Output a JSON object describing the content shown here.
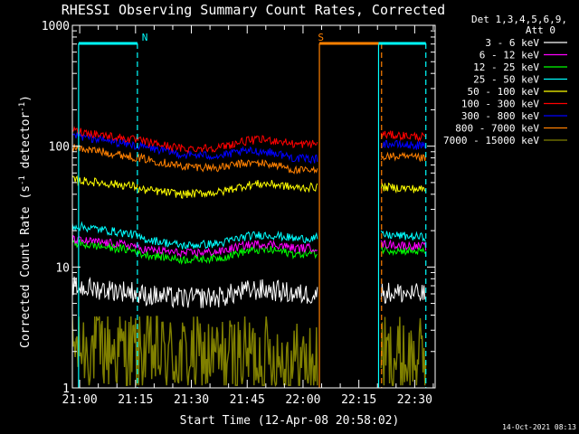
{
  "chart_data": {
    "type": "line",
    "title": "RHESSI Observing Summary Count Rates, Corrected",
    "xlabel": "Start Time (12-Apr-08 20:58:02)",
    "ylabel_parts": [
      "Corrected Count Rate (s",
      "-1",
      " detector",
      "-1",
      ")"
    ],
    "y_scale": "log",
    "ylim": [
      1,
      1000
    ],
    "xlim_minutes_after_2100": [
      -1.97,
      95.5
    ],
    "x_ticks": [
      {
        "label": "21:00",
        "t": 0
      },
      {
        "label": "21:15",
        "t": 15
      },
      {
        "label": "21:30",
        "t": 30
      },
      {
        "label": "21:45",
        "t": 45
      },
      {
        "label": "22:00",
        "t": 60
      },
      {
        "label": "22:15",
        "t": 75
      },
      {
        "label": "22:30",
        "t": 90
      }
    ],
    "y_tick_labels": [
      {
        "label": "1",
        "v": 1
      },
      {
        "label": "10",
        "v": 10
      },
      {
        "label": "100",
        "v": 100
      },
      {
        "label": "1000",
        "v": 1000
      }
    ],
    "legend_header": [
      "Det 1,3,4,5,6,9,",
      "Att 0"
    ],
    "timestamp": "14-Oct-2021 08:13",
    "flag_labels": [
      {
        "text": "N",
        "t": 17.5,
        "color": "#00ffff"
      },
      {
        "text": "S",
        "t": 64.8,
        "color": "#ff8000"
      }
    ],
    "segments_minutes": [
      [
        -1.97,
        15.6
      ],
      [
        15.6,
        64.0
      ],
      [
        81.0,
        93.0
      ]
    ],
    "series": [
      {
        "name": "3 - 6 keV",
        "color": "#ffffff",
        "values_start_mid_end": [
          6.5,
          5.5,
          6.0
        ],
        "seg3": 6.2
      },
      {
        "name": "6 - 12 keV",
        "color": "#ff00ff",
        "values_start_mid_end": [
          16.0,
          13.0,
          14.5
        ],
        "seg3": 15.5
      },
      {
        "name": "12 - 25 keV",
        "color": "#00ff00",
        "values_start_mid_end": [
          15.0,
          11.5,
          13.0
        ],
        "seg3": 14.0
      },
      {
        "name": "25 - 50 keV",
        "color": "#00ffff",
        "values_start_mid_end": [
          21.0,
          15.0,
          17.5
        ],
        "seg3": 18.5
      },
      {
        "name": "50 - 100 keV",
        "color": "#ffff00",
        "values_start_mid_end": [
          50.0,
          40.0,
          46.0
        ],
        "seg3": 46.0
      },
      {
        "name": "100 - 300 keV",
        "color": "#ff0000",
        "values_start_mid_end": [
          135.0,
          95.0,
          105.0
        ],
        "seg3": 125.0
      },
      {
        "name": "300 - 800 keV",
        "color": "#0000ff",
        "values_start_mid_end": [
          123.0,
          85.0,
          78.0
        ],
        "seg3": 105.0
      },
      {
        "name": "800 - 7000 keV",
        "color": "#ff8000",
        "values_start_mid_end": [
          98.0,
          68.0,
          62.0
        ],
        "seg3": 83.0
      },
      {
        "name": "7000 - 15000 keV",
        "color": "#808000",
        "values_start_mid_end": [
          2.2,
          1.8,
          1.6
        ],
        "seg3": 1.8
      }
    ],
    "markers": [
      {
        "t": -0.3,
        "color": "#00ffff",
        "style": "solid"
      },
      {
        "t": 15.5,
        "color": "#00ffff",
        "style": "dash"
      },
      {
        "t": 64.4,
        "color": "#ff8000",
        "style": "solid"
      },
      {
        "t": 80.3,
        "color": "#00ffff",
        "style": "solid"
      },
      {
        "t": 81.1,
        "color": "#ff8000",
        "style": "dash"
      },
      {
        "t": 93.0,
        "color": "#00ffff",
        "style": "dash"
      }
    ],
    "flag_bars": [
      {
        "t0": -0.3,
        "t1": 15.5,
        "color": "#00ffff"
      },
      {
        "t0": 64.4,
        "t1": 80.3,
        "color": "#ff8000"
      },
      {
        "t0": 80.3,
        "t1": 93.0,
        "color": "#00ffff"
      }
    ],
    "grid": false,
    "legend_position": "right"
  }
}
